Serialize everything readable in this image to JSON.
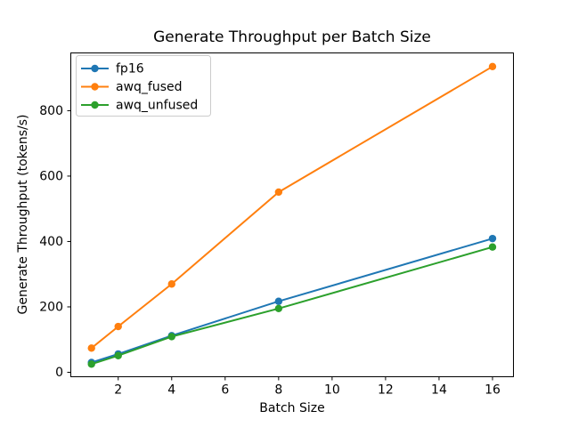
{
  "chart_data": {
    "type": "line",
    "title": "Generate Throughput per Batch Size",
    "xlabel": "Batch Size",
    "ylabel": "Generate Throughput (tokens/s)",
    "x": [
      1,
      2,
      4,
      8,
      16
    ],
    "series": [
      {
        "name": "fp16",
        "color": "#1f77b4",
        "values": [
          30,
          56,
          112,
          217,
          409
        ]
      },
      {
        "name": "awq_fused",
        "color": "#ff7f0e",
        "values": [
          74,
          140,
          270,
          551,
          935
        ]
      },
      {
        "name": "awq_unfused",
        "color": "#2ca02c",
        "values": [
          25,
          51,
          109,
          195,
          383
        ]
      }
    ],
    "xticks": [
      2,
      4,
      6,
      8,
      10,
      12,
      14,
      16
    ],
    "yticks": [
      0,
      200,
      400,
      600,
      800
    ],
    "xlim": [
      0.21,
      16.8
    ],
    "ylim": [
      -15,
      978
    ],
    "legend_position": "upper left",
    "grid": false,
    "marker": "o",
    "background_color": "#ffffff",
    "axes_color": "#000000",
    "legend_border_color": "#cccccc"
  }
}
